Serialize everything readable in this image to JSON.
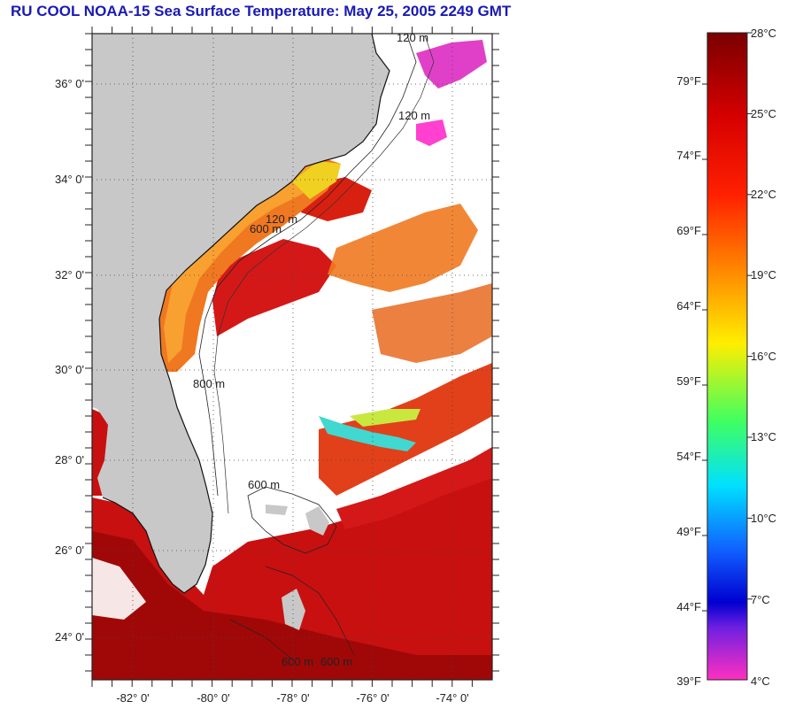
{
  "title": "RU COOL  NOAA-15  Sea Surface Temperature:  May 25, 2005 2249 GMT",
  "map": {
    "lat_labels": [
      "36° 0'",
      "34° 0'",
      "32° 0'",
      "30° 0'",
      "28° 0'",
      "26° 0'",
      "24° 0'"
    ],
    "lon_labels": [
      "-82° 0'",
      "-80° 0'",
      "-78° 0'",
      "-76° 0'",
      "-74° 0'"
    ],
    "contour_labels": [
      "120 m",
      "600 m",
      "120 m",
      "800 m",
      "600 m",
      "120 m",
      "600 m",
      "600 m"
    ],
    "colors": {
      "land": "#c8c8c8",
      "cloud": "#ffffff",
      "warm": "#c81414",
      "shelf": "#f06a1a"
    }
  },
  "colorbar": {
    "celsius_labels": [
      "28°C",
      "25°C",
      "22°C",
      "19°C",
      "16°C",
      "13°C",
      "10°C",
      "7°C",
      "4°C"
    ],
    "fahrenheit_labels": [
      "79°F",
      "74°F",
      "69°F",
      "64°F",
      "59°F",
      "54°F",
      "49°F",
      "44°F",
      "39°F"
    ]
  }
}
